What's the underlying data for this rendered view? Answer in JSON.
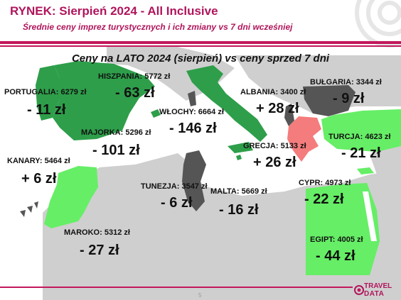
{
  "header": {
    "title": "RYNEK: Sierpień 2024 - All Inclusive",
    "subtitle": "Średnie ceny imprez turystycznych i ich zmiany vs 7 dni wcześniej"
  },
  "map": {
    "heading": "Ceny na LATO 2024 (sierpień) vs ceny sprzed 7 dni",
    "legend_colors": {
      "strong_decrease": "#2e9e4a",
      "decrease": "#66ee66",
      "increase": "#f47c7c",
      "no_data_dark": "#555555",
      "land": "#cfcfcf",
      "sea": "#ffffff"
    },
    "countries": [
      {
        "name": "PORTUGALIA:",
        "price": "6279 zł",
        "change": "- 11 zł"
      },
      {
        "name": "HISZPANIA:",
        "price": "5772 zł",
        "change": "- 63 zł"
      },
      {
        "name": "MAJORKA:",
        "price": "5296 zł",
        "change": "- 101 zł"
      },
      {
        "name": "WŁOCHY:",
        "price": "6664 zł",
        "change": "- 146 zł"
      },
      {
        "name": "ALBANIA:",
        "price": "3400 zł",
        "change": "+ 28 zł"
      },
      {
        "name": "BUŁGARIA:",
        "price": "3344 zł",
        "change": "- 9 zł"
      },
      {
        "name": "TURCJA:",
        "price": "4623 zł",
        "change": "- 21 zł"
      },
      {
        "name": "GRECJA:",
        "price": "5133 zł",
        "change": "+ 26 zł"
      },
      {
        "name": "KANARY:",
        "price": "5464 zł",
        "change": "+ 6 zł"
      },
      {
        "name": "TUNEZJA:",
        "price": "3547 zł",
        "change": "- 6 zł"
      },
      {
        "name": "MALTA:",
        "price": "5669 zł",
        "change": "- 16 zł"
      },
      {
        "name": "CYPR:",
        "price": "4973 zł",
        "change": "- 22 zł"
      },
      {
        "name": "MAROKO:",
        "price": "5312 zł",
        "change": "- 27 zł"
      },
      {
        "name": "EGIPT:",
        "price": "4005 zł",
        "change": "- 44 zł"
      }
    ]
  },
  "footer": {
    "page_number": "5",
    "logo_top": "TRAVEL",
    "logo_bottom": "DATA"
  }
}
